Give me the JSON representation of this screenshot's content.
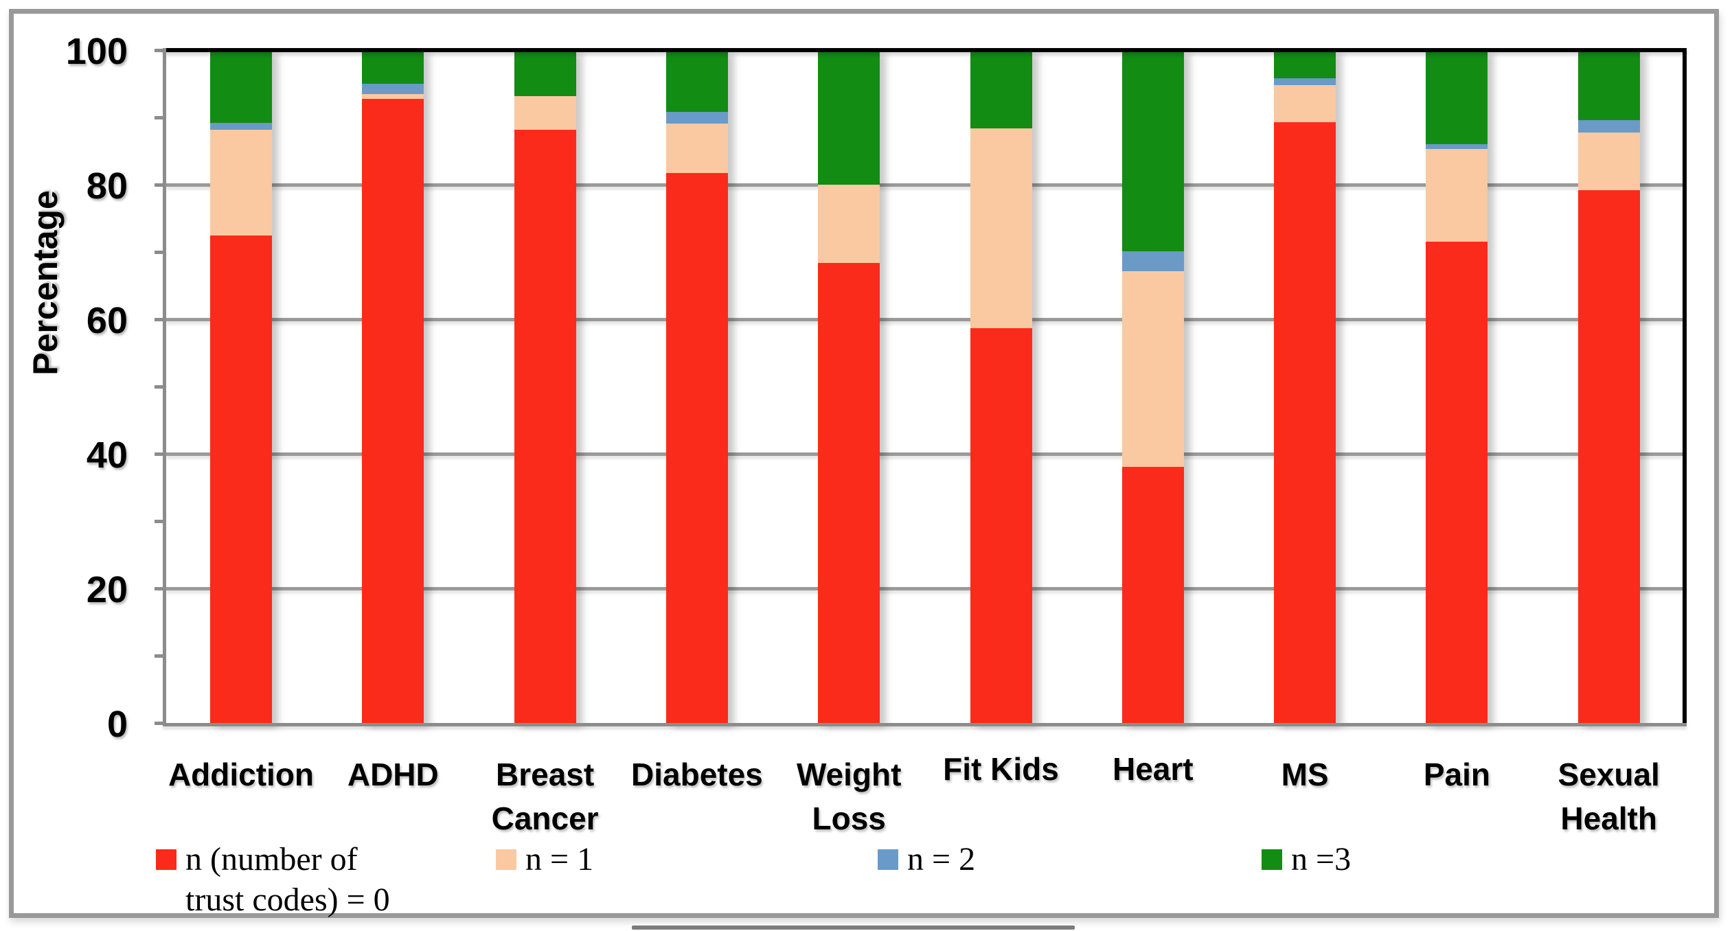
{
  "chart_data": {
    "type": "bar",
    "stacked": true,
    "orientation": "vertical",
    "ylabel": "Percentage",
    "ylim": [
      0,
      100
    ],
    "grid": true,
    "ytick_labels": [
      "100",
      "80",
      "60",
      "40",
      "20",
      "0"
    ],
    "ytick_major_values": [
      100,
      80,
      60,
      40,
      20,
      0
    ],
    "ytick_minor_values": [
      90,
      70,
      50,
      30,
      10
    ],
    "categories": [
      "Addiction",
      "ADHD",
      "Breast Cancer",
      "Diabetes",
      "Weight Loss",
      "Fit Kids",
      "Heart",
      "MS",
      "Pain",
      "Sexual Health"
    ],
    "category_label_lines": [
      [
        "Addiction"
      ],
      [
        "ADHD"
      ],
      [
        "Breast",
        "Cancer"
      ],
      [
        "Diabetes"
      ],
      [
        "Weight",
        "Loss"
      ],
      [
        "Fit Kids"
      ],
      [
        "Heart"
      ],
      [
        "MS"
      ],
      [
        "Pain"
      ],
      [
        "Sexual",
        "Health"
      ]
    ],
    "series": [
      {
        "name": "n (number of trust codes) = 0",
        "color": "#fa2b1a",
        "values": [
          72.4,
          92.8,
          88.2,
          81.7,
          68.4,
          58.7,
          38.1,
          89.3,
          71.5,
          79.2
        ]
      },
      {
        "name": "n = 1",
        "color": "#fac9a1",
        "values": [
          15.8,
          0.7,
          5.0,
          7.4,
          11.6,
          29.7,
          29.0,
          5.5,
          13.8,
          8.6
        ]
      },
      {
        "name": "n = 2",
        "color": "#6a9ac8",
        "values": [
          1.0,
          1.5,
          0.0,
          1.7,
          0.0,
          0.0,
          3.0,
          1.0,
          0.7,
          1.8
        ]
      },
      {
        "name": "n =3",
        "color": "#138c13",
        "values": [
          10.8,
          5.0,
          6.8,
          9.2,
          20.0,
          11.6,
          29.9,
          4.2,
          14.0,
          10.4
        ]
      }
    ],
    "legend_position": "bottom",
    "legend": [
      {
        "label_lines": [
          "n (number of",
          "trust codes) = 0"
        ],
        "color": "#fa2b1a"
      },
      {
        "label_lines": [
          "n = 1"
        ],
        "color": "#fac9a1"
      },
      {
        "label_lines": [
          "n = 2"
        ],
        "color": "#6a9ac8"
      },
      {
        "label_lines": [
          "n =3"
        ],
        "color": "#138c13"
      }
    ],
    "line_colors": {
      "plot_top_border": "#000000",
      "plot_right_border": "#000000",
      "plot_left_axis": "#8c8c8c",
      "plot_bottom_axis": "#8c8c8c",
      "gridline": "#9a9a9a",
      "outer_frame": "#999999"
    }
  }
}
